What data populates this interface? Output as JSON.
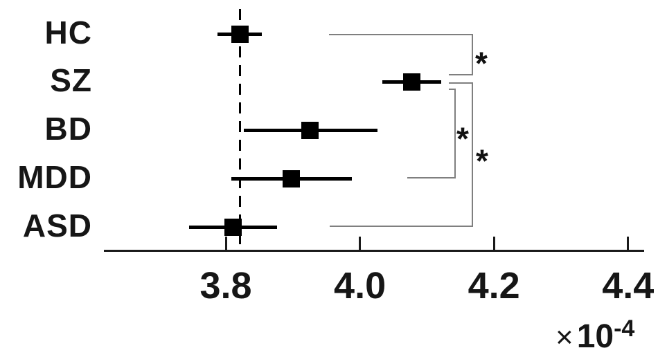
{
  "figure": {
    "background": "#ffffff"
  },
  "colors": {
    "marker": "#000000",
    "error_bar": "#000000",
    "axis": "#1a1a1a",
    "bracket": "#7f7f7f",
    "text": "#161616",
    "reference_line": "#000000"
  },
  "chart_data": {
    "type": "scatter",
    "subtype": "horizontal-error-bar-forest-plot",
    "orientation": "horizontal",
    "title": "",
    "xlabel": "",
    "ylabel": "",
    "grid": false,
    "legend": null,
    "x_unit_multiplier": "×10⁻⁴",
    "x_multiplier": {
      "times": "×",
      "base": "10",
      "exponent": "-4"
    },
    "xlim": [
      3.615,
      4.425
    ],
    "x_ticks": [
      3.8,
      4.0,
      4.2,
      4.4
    ],
    "x_tick_labels": [
      "3.8",
      "4.0",
      "4.2",
      "4.4"
    ],
    "groups": [
      {
        "label": "HC",
        "mean": 3.821,
        "ci_low": 3.788,
        "ci_high": 3.854
      },
      {
        "label": "SZ",
        "mean": 4.077,
        "ci_low": 4.033,
        "ci_high": 4.121
      },
      {
        "label": "BD",
        "mean": 3.925,
        "ci_low": 3.827,
        "ci_high": 4.026
      },
      {
        "label": "MDD",
        "mean": 3.898,
        "ci_low": 3.808,
        "ci_high": 3.988
      },
      {
        "label": "ASD",
        "mean": 3.811,
        "ci_low": 3.745,
        "ci_high": 3.876
      }
    ],
    "reference_line": {
      "value": 3.821,
      "style": "dashed"
    },
    "comparisons": [
      {
        "group_a": "HC",
        "group_b": "SZ",
        "significance": "*"
      },
      {
        "group_a": "SZ",
        "group_b": "MDD",
        "significance": "*"
      },
      {
        "group_a": "SZ",
        "group_b": "ASD",
        "significance": "*"
      }
    ]
  }
}
